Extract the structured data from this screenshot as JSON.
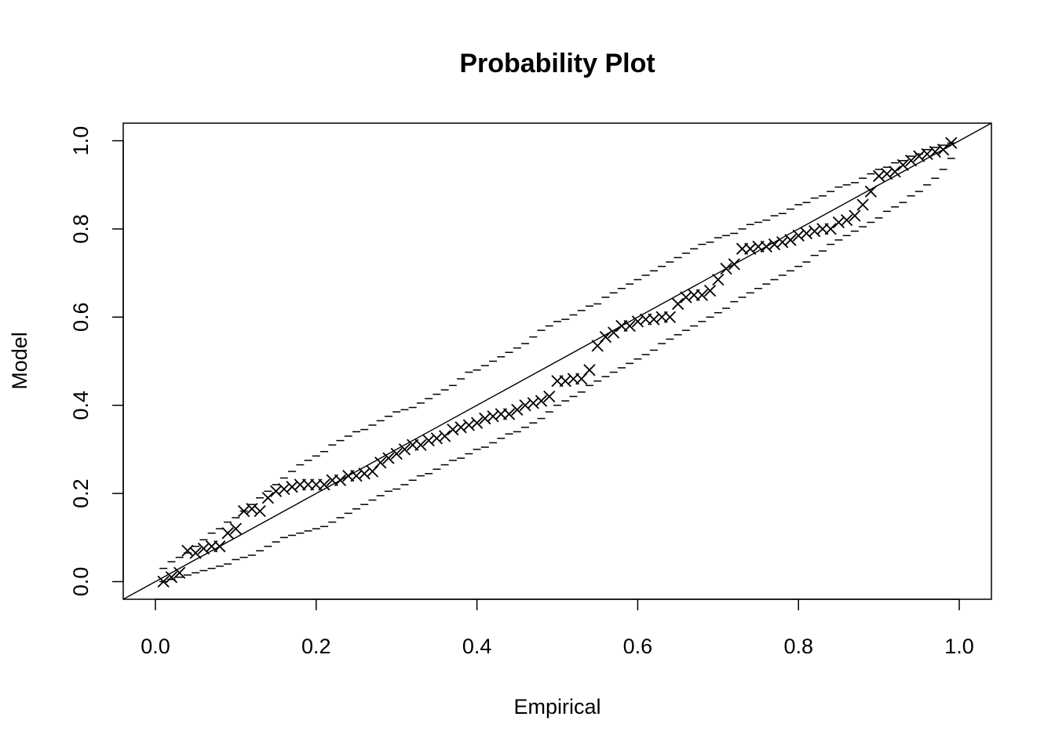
{
  "chart_data": {
    "type": "scatter",
    "title": "Probability Plot",
    "xlabel": "Empirical",
    "ylabel": "Model",
    "xlim": [
      -0.04,
      1.04
    ],
    "ylim": [
      -0.04,
      1.04
    ],
    "xticks": [
      0.0,
      0.2,
      0.4,
      0.6,
      0.8,
      1.0
    ],
    "yticks": [
      0.0,
      0.2,
      0.4,
      0.6,
      0.8,
      1.0
    ],
    "xtick_labels": [
      "0.0",
      "0.2",
      "0.4",
      "0.6",
      "0.8",
      "1.0"
    ],
    "ytick_labels": [
      "0.0",
      "0.2",
      "0.4",
      "0.6",
      "0.8",
      "1.0"
    ],
    "grid": false,
    "reference_line": {
      "from": [
        -0.04,
        -0.04
      ],
      "to": [
        1.04,
        1.04
      ]
    },
    "series": [
      {
        "marker": "x",
        "points": [
          [
            0.01,
            0.0
          ],
          [
            0.02,
            0.01
          ],
          [
            0.03,
            0.02
          ],
          [
            0.04,
            0.07
          ],
          [
            0.05,
            0.065
          ],
          [
            0.06,
            0.075
          ],
          [
            0.07,
            0.08
          ],
          [
            0.08,
            0.08
          ],
          [
            0.09,
            0.11
          ],
          [
            0.1,
            0.12
          ],
          [
            0.11,
            0.16
          ],
          [
            0.12,
            0.165
          ],
          [
            0.13,
            0.16
          ],
          [
            0.14,
            0.19
          ],
          [
            0.15,
            0.205
          ],
          [
            0.16,
            0.21
          ],
          [
            0.17,
            0.215
          ],
          [
            0.18,
            0.22
          ],
          [
            0.19,
            0.22
          ],
          [
            0.2,
            0.22
          ],
          [
            0.21,
            0.22
          ],
          [
            0.22,
            0.23
          ],
          [
            0.23,
            0.23
          ],
          [
            0.24,
            0.24
          ],
          [
            0.25,
            0.24
          ],
          [
            0.26,
            0.245
          ],
          [
            0.27,
            0.25
          ],
          [
            0.28,
            0.27
          ],
          [
            0.29,
            0.28
          ],
          [
            0.3,
            0.29
          ],
          [
            0.31,
            0.3
          ],
          [
            0.32,
            0.31
          ],
          [
            0.33,
            0.31
          ],
          [
            0.34,
            0.32
          ],
          [
            0.35,
            0.325
          ],
          [
            0.36,
            0.33
          ],
          [
            0.37,
            0.345
          ],
          [
            0.38,
            0.35
          ],
          [
            0.39,
            0.355
          ],
          [
            0.4,
            0.36
          ],
          [
            0.41,
            0.37
          ],
          [
            0.42,
            0.375
          ],
          [
            0.43,
            0.38
          ],
          [
            0.44,
            0.38
          ],
          [
            0.45,
            0.39
          ],
          [
            0.46,
            0.4
          ],
          [
            0.47,
            0.405
          ],
          [
            0.48,
            0.41
          ],
          [
            0.49,
            0.42
          ],
          [
            0.5,
            0.455
          ],
          [
            0.51,
            0.455
          ],
          [
            0.52,
            0.46
          ],
          [
            0.53,
            0.46
          ],
          [
            0.54,
            0.48
          ],
          [
            0.55,
            0.535
          ],
          [
            0.56,
            0.555
          ],
          [
            0.57,
            0.565
          ],
          [
            0.58,
            0.58
          ],
          [
            0.59,
            0.58
          ],
          [
            0.6,
            0.59
          ],
          [
            0.61,
            0.595
          ],
          [
            0.62,
            0.595
          ],
          [
            0.63,
            0.6
          ],
          [
            0.64,
            0.6
          ],
          [
            0.65,
            0.63
          ],
          [
            0.66,
            0.645
          ],
          [
            0.67,
            0.65
          ],
          [
            0.68,
            0.65
          ],
          [
            0.69,
            0.66
          ],
          [
            0.7,
            0.685
          ],
          [
            0.71,
            0.71
          ],
          [
            0.72,
            0.72
          ],
          [
            0.73,
            0.755
          ],
          [
            0.74,
            0.755
          ],
          [
            0.75,
            0.76
          ],
          [
            0.76,
            0.76
          ],
          [
            0.77,
            0.765
          ],
          [
            0.78,
            0.77
          ],
          [
            0.79,
            0.775
          ],
          [
            0.8,
            0.785
          ],
          [
            0.81,
            0.79
          ],
          [
            0.82,
            0.795
          ],
          [
            0.83,
            0.8
          ],
          [
            0.84,
            0.8
          ],
          [
            0.85,
            0.815
          ],
          [
            0.86,
            0.82
          ],
          [
            0.87,
            0.83
          ],
          [
            0.88,
            0.855
          ],
          [
            0.89,
            0.885
          ],
          [
            0.9,
            0.92
          ],
          [
            0.91,
            0.925
          ],
          [
            0.92,
            0.93
          ],
          [
            0.93,
            0.945
          ],
          [
            0.94,
            0.955
          ],
          [
            0.95,
            0.965
          ],
          [
            0.96,
            0.97
          ],
          [
            0.97,
            0.975
          ],
          [
            0.98,
            0.98
          ],
          [
            0.99,
            0.995
          ]
        ]
      },
      {
        "marker": "dash",
        "points": [
          [
            0.01,
            0.03
          ],
          [
            0.02,
            0.045
          ],
          [
            0.03,
            0.055
          ],
          [
            0.04,
            0.065
          ],
          [
            0.05,
            0.08
          ],
          [
            0.06,
            0.095
          ],
          [
            0.07,
            0.11
          ],
          [
            0.08,
            0.12
          ],
          [
            0.09,
            0.135
          ],
          [
            0.1,
            0.145
          ],
          [
            0.11,
            0.16
          ],
          [
            0.12,
            0.175
          ],
          [
            0.13,
            0.19
          ],
          [
            0.14,
            0.205
          ],
          [
            0.15,
            0.22
          ],
          [
            0.16,
            0.235
          ],
          [
            0.17,
            0.25
          ],
          [
            0.18,
            0.265
          ],
          [
            0.19,
            0.275
          ],
          [
            0.2,
            0.285
          ],
          [
            0.21,
            0.295
          ],
          [
            0.22,
            0.31
          ],
          [
            0.23,
            0.32
          ],
          [
            0.24,
            0.33
          ],
          [
            0.25,
            0.34
          ],
          [
            0.26,
            0.345
          ],
          [
            0.27,
            0.355
          ],
          [
            0.28,
            0.365
          ],
          [
            0.29,
            0.375
          ],
          [
            0.3,
            0.385
          ],
          [
            0.31,
            0.39
          ],
          [
            0.32,
            0.395
          ],
          [
            0.33,
            0.405
          ],
          [
            0.34,
            0.415
          ],
          [
            0.35,
            0.425
          ],
          [
            0.36,
            0.435
          ],
          [
            0.37,
            0.445
          ],
          [
            0.38,
            0.46
          ],
          [
            0.39,
            0.475
          ],
          [
            0.4,
            0.48
          ],
          [
            0.41,
            0.49
          ],
          [
            0.42,
            0.5
          ],
          [
            0.43,
            0.51
          ],
          [
            0.44,
            0.52
          ],
          [
            0.45,
            0.53
          ],
          [
            0.46,
            0.54
          ],
          [
            0.47,
            0.555
          ],
          [
            0.48,
            0.57
          ],
          [
            0.49,
            0.58
          ],
          [
            0.5,
            0.59
          ],
          [
            0.51,
            0.595
          ],
          [
            0.52,
            0.605
          ],
          [
            0.53,
            0.615
          ],
          [
            0.54,
            0.625
          ],
          [
            0.55,
            0.63
          ],
          [
            0.56,
            0.645
          ],
          [
            0.57,
            0.655
          ],
          [
            0.58,
            0.665
          ],
          [
            0.59,
            0.675
          ],
          [
            0.6,
            0.685
          ],
          [
            0.61,
            0.695
          ],
          [
            0.62,
            0.705
          ],
          [
            0.63,
            0.715
          ],
          [
            0.64,
            0.725
          ],
          [
            0.65,
            0.735
          ],
          [
            0.66,
            0.745
          ],
          [
            0.67,
            0.755
          ],
          [
            0.68,
            0.765
          ],
          [
            0.69,
            0.77
          ],
          [
            0.7,
            0.78
          ],
          [
            0.71,
            0.785
          ],
          [
            0.72,
            0.79
          ],
          [
            0.73,
            0.8
          ],
          [
            0.74,
            0.81
          ],
          [
            0.75,
            0.815
          ],
          [
            0.76,
            0.82
          ],
          [
            0.77,
            0.83
          ],
          [
            0.78,
            0.835
          ],
          [
            0.79,
            0.845
          ],
          [
            0.8,
            0.855
          ],
          [
            0.81,
            0.86
          ],
          [
            0.82,
            0.87
          ],
          [
            0.83,
            0.875
          ],
          [
            0.84,
            0.885
          ],
          [
            0.85,
            0.895
          ],
          [
            0.86,
            0.9
          ],
          [
            0.87,
            0.905
          ],
          [
            0.88,
            0.915
          ],
          [
            0.89,
            0.925
          ],
          [
            0.9,
            0.935
          ],
          [
            0.91,
            0.94
          ],
          [
            0.92,
            0.95
          ],
          [
            0.93,
            0.955
          ],
          [
            0.94,
            0.965
          ],
          [
            0.95,
            0.97
          ],
          [
            0.96,
            0.98
          ],
          [
            0.97,
            0.985
          ],
          [
            0.98,
            0.99
          ],
          [
            0.99,
            0.995
          ]
        ]
      },
      {
        "marker": "dash",
        "points": [
          [
            0.01,
            0.0
          ],
          [
            0.02,
            0.005
          ],
          [
            0.03,
            0.01
          ],
          [
            0.04,
            0.015
          ],
          [
            0.05,
            0.02
          ],
          [
            0.06,
            0.025
          ],
          [
            0.07,
            0.03
          ],
          [
            0.08,
            0.035
          ],
          [
            0.09,
            0.04
          ],
          [
            0.1,
            0.05
          ],
          [
            0.11,
            0.055
          ],
          [
            0.12,
            0.06
          ],
          [
            0.13,
            0.07
          ],
          [
            0.14,
            0.08
          ],
          [
            0.15,
            0.09
          ],
          [
            0.16,
            0.1
          ],
          [
            0.17,
            0.105
          ],
          [
            0.18,
            0.11
          ],
          [
            0.19,
            0.115
          ],
          [
            0.2,
            0.12
          ],
          [
            0.21,
            0.125
          ],
          [
            0.22,
            0.135
          ],
          [
            0.23,
            0.145
          ],
          [
            0.24,
            0.155
          ],
          [
            0.25,
            0.165
          ],
          [
            0.26,
            0.175
          ],
          [
            0.27,
            0.185
          ],
          [
            0.28,
            0.195
          ],
          [
            0.29,
            0.205
          ],
          [
            0.3,
            0.21
          ],
          [
            0.31,
            0.22
          ],
          [
            0.32,
            0.23
          ],
          [
            0.33,
            0.24
          ],
          [
            0.34,
            0.245
          ],
          [
            0.35,
            0.255
          ],
          [
            0.36,
            0.265
          ],
          [
            0.37,
            0.275
          ],
          [
            0.38,
            0.28
          ],
          [
            0.39,
            0.29
          ],
          [
            0.4,
            0.3
          ],
          [
            0.41,
            0.305
          ],
          [
            0.42,
            0.315
          ],
          [
            0.43,
            0.325
          ],
          [
            0.44,
            0.335
          ],
          [
            0.45,
            0.34
          ],
          [
            0.46,
            0.35
          ],
          [
            0.47,
            0.36
          ],
          [
            0.48,
            0.37
          ],
          [
            0.49,
            0.385
          ],
          [
            0.5,
            0.4
          ],
          [
            0.51,
            0.41
          ],
          [
            0.52,
            0.42
          ],
          [
            0.53,
            0.43
          ],
          [
            0.54,
            0.445
          ],
          [
            0.55,
            0.455
          ],
          [
            0.56,
            0.465
          ],
          [
            0.57,
            0.475
          ],
          [
            0.58,
            0.485
          ],
          [
            0.59,
            0.495
          ],
          [
            0.6,
            0.505
          ],
          [
            0.61,
            0.515
          ],
          [
            0.62,
            0.525
          ],
          [
            0.63,
            0.54
          ],
          [
            0.64,
            0.55
          ],
          [
            0.65,
            0.56
          ],
          [
            0.66,
            0.57
          ],
          [
            0.67,
            0.58
          ],
          [
            0.68,
            0.59
          ],
          [
            0.69,
            0.6
          ],
          [
            0.7,
            0.61
          ],
          [
            0.71,
            0.62
          ],
          [
            0.72,
            0.635
          ],
          [
            0.73,
            0.645
          ],
          [
            0.74,
            0.655
          ],
          [
            0.75,
            0.665
          ],
          [
            0.76,
            0.675
          ],
          [
            0.77,
            0.685
          ],
          [
            0.78,
            0.695
          ],
          [
            0.79,
            0.705
          ],
          [
            0.8,
            0.715
          ],
          [
            0.81,
            0.725
          ],
          [
            0.82,
            0.74
          ],
          [
            0.83,
            0.75
          ],
          [
            0.84,
            0.765
          ],
          [
            0.85,
            0.775
          ],
          [
            0.86,
            0.785
          ],
          [
            0.87,
            0.795
          ],
          [
            0.88,
            0.805
          ],
          [
            0.89,
            0.815
          ],
          [
            0.9,
            0.825
          ],
          [
            0.91,
            0.84
          ],
          [
            0.92,
            0.85
          ],
          [
            0.93,
            0.86
          ],
          [
            0.94,
            0.875
          ],
          [
            0.95,
            0.885
          ],
          [
            0.96,
            0.9
          ],
          [
            0.97,
            0.915
          ],
          [
            0.98,
            0.935
          ],
          [
            0.99,
            0.96
          ]
        ]
      }
    ]
  }
}
